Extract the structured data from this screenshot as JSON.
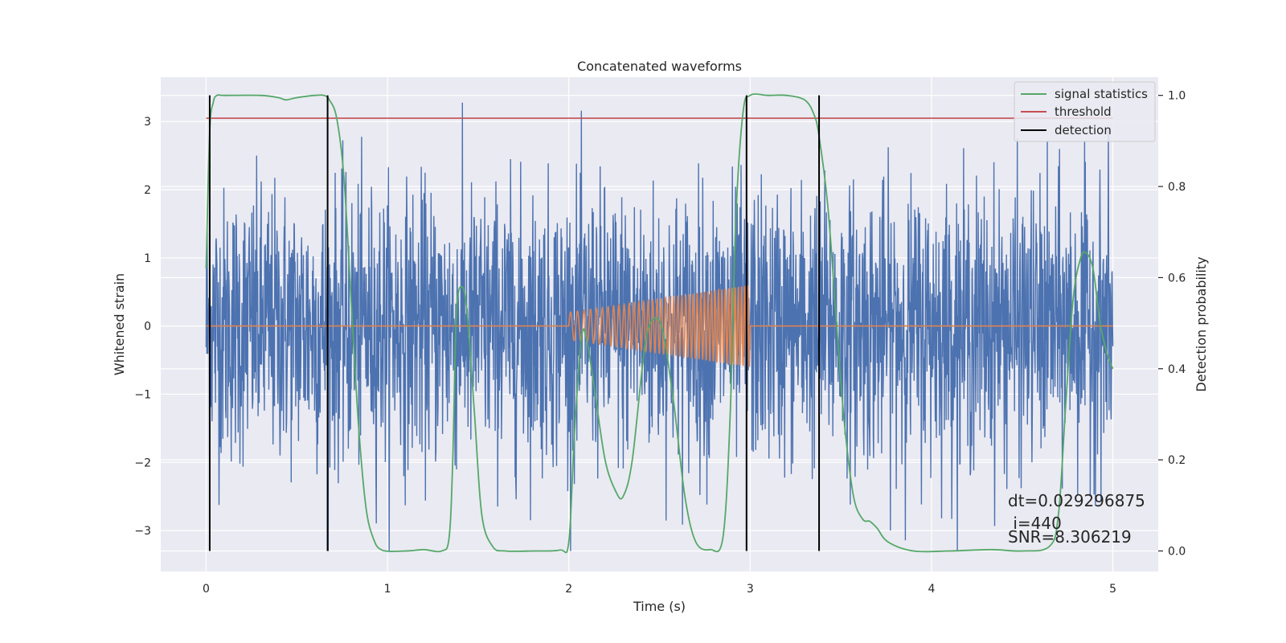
{
  "chart_data": {
    "type": "line",
    "title": "Concatenated waveforms",
    "xlabel": "Time (s)",
    "ylabel": "Whitened strain",
    "y2label": "Detection probability",
    "xlim": [
      -0.25,
      5.25
    ],
    "ylim": [
      -3.6,
      3.65
    ],
    "y2lim": [
      -0.045,
      1.04
    ],
    "xticks": [
      0,
      1,
      2,
      3,
      4,
      5
    ],
    "xtick_labels": [
      "0",
      "1",
      "2",
      "3",
      "4",
      "5"
    ],
    "yticks": [
      3,
      2,
      1,
      0,
      -1,
      -2,
      -3
    ],
    "ytick_labels": [
      "3",
      "2",
      "1",
      "0",
      "−1",
      "−2",
      "−3"
    ],
    "y2ticks": [
      1.0,
      0.8,
      0.6,
      0.4,
      0.2,
      0.0
    ],
    "y2tick_labels": [
      "1.0",
      "0.8",
      "0.6",
      "0.4",
      "0.2",
      "0.0"
    ],
    "grid": true,
    "legend": {
      "placement": "top-right",
      "entries": [
        {
          "label": "signal statistics",
          "color": "#55a868"
        },
        {
          "label": "threshold",
          "color": "#c44e52"
        },
        {
          "label": "detection",
          "color": "#000000"
        }
      ]
    },
    "series": [
      {
        "color": "#4c72b0",
        "axis": "left",
        "kind": "noise",
        "x_range": [
          0,
          5
        ],
        "amplitude_typical": 1.0,
        "amplitude_peak": 3.3
      },
      {
        "color": "#dd8452",
        "axis": "left",
        "kind": "chirp",
        "x_range": [
          0,
          5
        ],
        "active_range": [
          2.0,
          3.0
        ],
        "amplitude_start": 0.2,
        "amplitude_end": 0.6,
        "cycles": 42
      },
      {
        "name": "signal statistics",
        "color": "#55a868",
        "axis": "right",
        "x": [
          0.0,
          0.02,
          0.04,
          0.06,
          0.1,
          0.3,
          0.4,
          0.44,
          0.5,
          0.6,
          0.65,
          0.68,
          0.72,
          0.76,
          0.8,
          0.84,
          0.88,
          0.92,
          0.97,
          1.1,
          1.2,
          1.3,
          1.34,
          1.36,
          1.38,
          1.41,
          1.44,
          1.48,
          1.52,
          1.58,
          1.65,
          1.8,
          1.95,
          2.0,
          2.03,
          2.07,
          2.1,
          2.14,
          2.2,
          2.26,
          2.3,
          2.35,
          2.42,
          2.47,
          2.52,
          2.58,
          2.64,
          2.7,
          2.78,
          2.85,
          2.89,
          2.92,
          2.96,
          3.0,
          3.1,
          3.2,
          3.3,
          3.35,
          3.38,
          3.43,
          3.48,
          3.52,
          3.57,
          3.62,
          3.66,
          3.7,
          3.76,
          3.9,
          4.1,
          4.33,
          4.5,
          4.65,
          4.7,
          4.74,
          4.78,
          4.82,
          4.85,
          4.89,
          4.93,
          4.97,
          5.0
        ],
        "values": [
          0.62,
          0.92,
          0.985,
          1.0,
          1.0,
          1.0,
          0.995,
          0.99,
          0.995,
          1.0,
          1.0,
          0.99,
          0.95,
          0.82,
          0.55,
          0.28,
          0.1,
          0.03,
          0.002,
          0.0,
          0.003,
          0.0,
          0.03,
          0.2,
          0.52,
          0.58,
          0.52,
          0.3,
          0.08,
          0.01,
          0.0,
          0.0,
          0.002,
          0.02,
          0.25,
          0.47,
          0.46,
          0.36,
          0.2,
          0.13,
          0.12,
          0.2,
          0.45,
          0.51,
          0.48,
          0.32,
          0.12,
          0.02,
          0.003,
          0.03,
          0.3,
          0.72,
          0.96,
          1.0,
          1.0,
          1.0,
          0.99,
          0.96,
          0.91,
          0.75,
          0.48,
          0.28,
          0.12,
          0.07,
          0.065,
          0.05,
          0.02,
          0.0,
          0.0,
          0.003,
          0.0,
          0.01,
          0.08,
          0.32,
          0.55,
          0.64,
          0.655,
          0.62,
          0.5,
          0.43,
          0.4
        ]
      },
      {
        "name": "threshold",
        "color": "#c44e52",
        "axis": "right",
        "x": [
          0,
          5
        ],
        "values": [
          0.95,
          0.95
        ]
      },
      {
        "name": "detection",
        "color": "#000000",
        "axis": "right",
        "kind": "vlines",
        "x": [
          0.02,
          0.67,
          2.98,
          3.38
        ],
        "range": [
          0.0,
          1.0
        ]
      }
    ]
  },
  "annotation": {
    "lines": [
      "dt=0.029296875",
      " i=440",
      "SNR=8.306219"
    ]
  }
}
